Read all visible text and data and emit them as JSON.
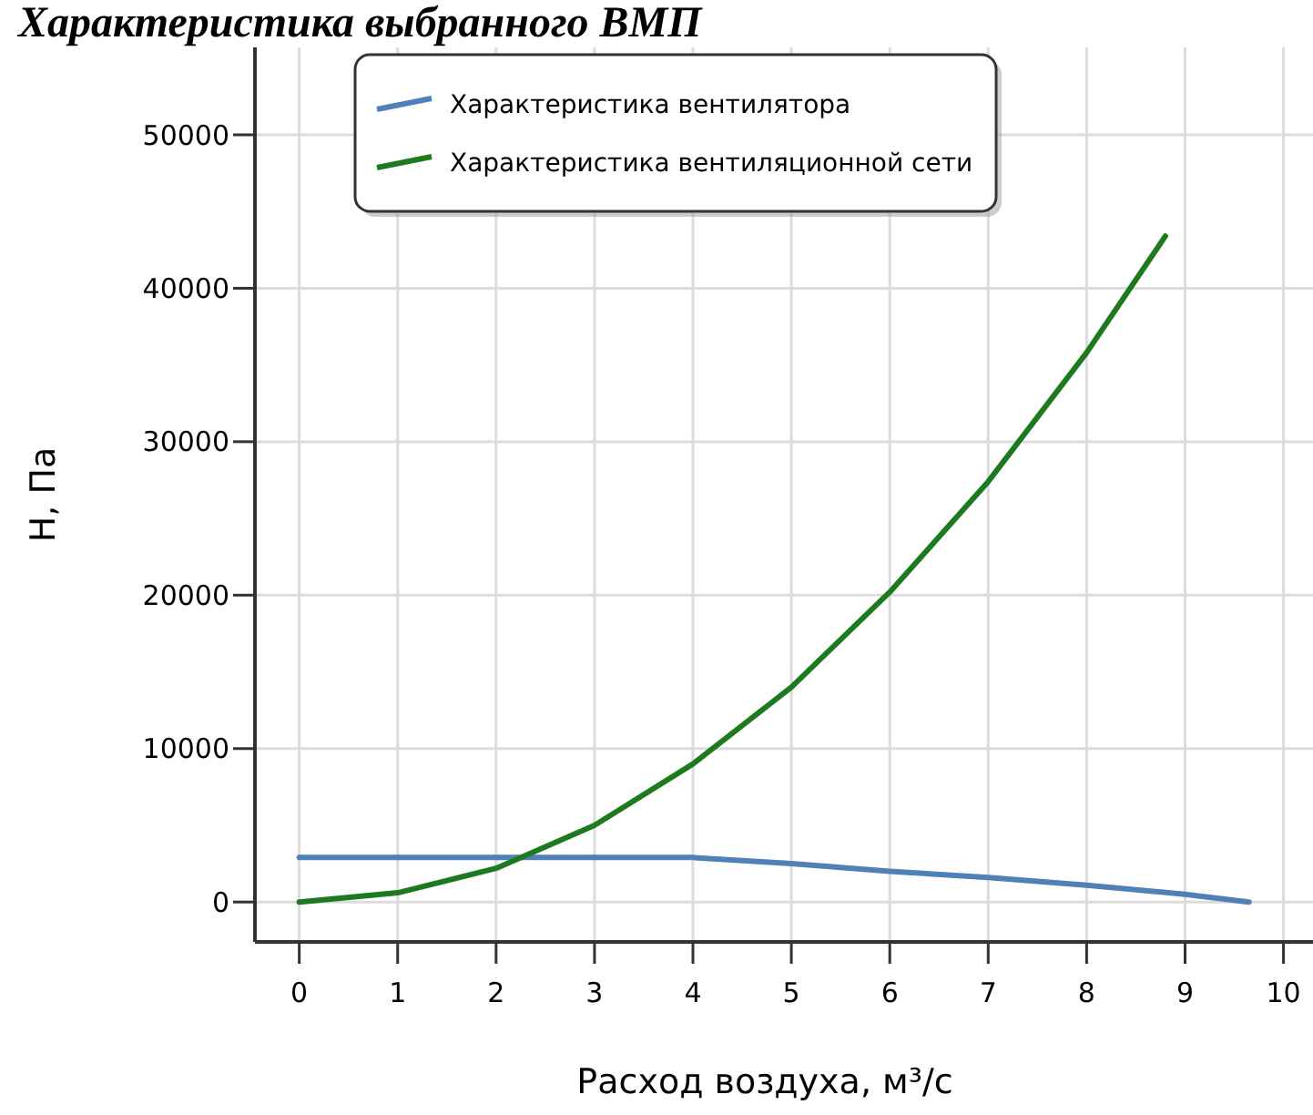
{
  "chart_data": {
    "type": "line",
    "title": "Характеристика выбранного ВМП",
    "xlabel": "Расход воздуха, м³/с",
    "ylabel": "H, Па",
    "xlim": [
      -0.45,
      10.3
    ],
    "xticks": [
      0,
      1,
      2,
      3,
      4,
      5,
      6,
      7,
      8,
      9,
      10
    ],
    "ylim": [
      -2600,
      55700
    ],
    "yticks": [
      0,
      10000,
      20000,
      30000,
      40000,
      50000
    ],
    "grid": true,
    "legend": "top",
    "line_style": "solid",
    "marker": "none",
    "series": [
      {
        "name": "Характеристика вентилятора",
        "color": "#4f81b8",
        "x": [
          0,
          1,
          2,
          3,
          4,
          5,
          6,
          7,
          8,
          9,
          9.65
        ],
        "values": [
          2900,
          2900,
          2900,
          2900,
          2900,
          2500,
          2000,
          1600,
          1100,
          500,
          0
        ]
      },
      {
        "name": "Характеристика вентиляционной сети",
        "color": "#1e7a1e",
        "x": [
          0,
          1,
          2,
          3,
          4,
          5,
          6,
          7,
          8,
          8.8
        ],
        "values": [
          0,
          600,
          2200,
          5000,
          9000,
          14000,
          20200,
          27400,
          35800,
          43400
        ]
      }
    ]
  }
}
